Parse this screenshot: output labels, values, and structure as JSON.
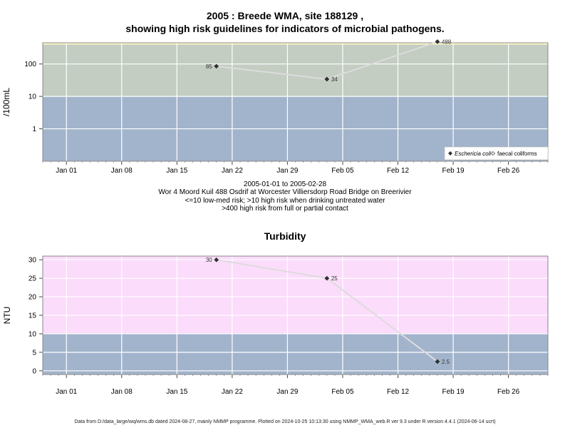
{
  "page": {
    "title_line1": "2005 : Breede WMA, site 188129 ,",
    "title_line2": "showing high risk guidelines for indicators of microbial pathogens.",
    "info_date_range": "2005-01-01 to 2005-02-28",
    "info_site": "Wor 4 Moord Kuil 488 Osdrif at Worcester Villiersdorp Road Bridge on Breerivier",
    "info_risk1": "<=10 low-med risk; >10 high risk when drinking untreated water",
    "info_risk2": ">400 high risk from full or partial contact",
    "footer": "Data from D:/data_large/wq/wms.db dated 2024-08-27, mainly NMMP programme. Plotted on 2024-10-25 10:13:30 using NMMP_WMA_web.R ver 9.3 under R version 4.4.1 (2024-06-14 ucrt)"
  },
  "chart_data": [
    {
      "type": "scatter",
      "title": "",
      "xlabel": "",
      "ylabel": "/100mL",
      "y_scale": "log",
      "x_tick_labels": [
        "Jan 01",
        "Jan 08",
        "Jan 15",
        "Jan 22",
        "Jan 29",
        "Feb 05",
        "Feb 12",
        "Feb 19",
        "Feb 26"
      ],
      "x_tick_dates": [
        "2005-01-01",
        "2005-01-08",
        "2005-01-15",
        "2005-01-22",
        "2005-01-29",
        "2005-02-05",
        "2005-02-12",
        "2005-02-19",
        "2005-02-26"
      ],
      "xlim": [
        "2004-12-29",
        "2005-03-03"
      ],
      "y_tick_labels": [
        "1",
        "10",
        "100"
      ],
      "y_tick_values": [
        1,
        10,
        100
      ],
      "ylim": [
        0.1,
        450
      ],
      "bands": [
        {
          "from": 0.1,
          "to": 10,
          "color": "#a2b4cc"
        },
        {
          "from": 10,
          "to": 400,
          "color": "#c3cdc2"
        },
        {
          "from": 400,
          "to": 450,
          "color": "#fff9c4"
        }
      ],
      "series": [
        {
          "name": "Eschericia coli",
          "marker": "filled-diamond",
          "color": "#333333",
          "x": [
            "2005-01-20",
            "2005-02-03",
            "2005-02-17"
          ],
          "y": [
            85,
            34,
            488
          ],
          "labels": [
            "85",
            "34",
            "488"
          ],
          "label_side": [
            "left",
            "right",
            "right"
          ]
        }
      ],
      "legend": {
        "position": "bottom-right",
        "entries": [
          {
            "label": "Eschericia coli",
            "marker": "filled-diamond",
            "italic": true
          },
          {
            "label": "faecal coliforms",
            "marker": "open-diamond",
            "italic": false
          }
        ]
      },
      "grid": true
    },
    {
      "type": "scatter",
      "title": "Turbidity",
      "xlabel": "",
      "ylabel": "NTU",
      "y_scale": "linear",
      "x_tick_labels": [
        "Jan 01",
        "Jan 08",
        "Jan 15",
        "Jan 22",
        "Jan 29",
        "Feb 05",
        "Feb 12",
        "Feb 19",
        "Feb 26"
      ],
      "x_tick_dates": [
        "2005-01-01",
        "2005-01-08",
        "2005-01-15",
        "2005-01-22",
        "2005-01-29",
        "2005-02-05",
        "2005-02-12",
        "2005-02-19",
        "2005-02-26"
      ],
      "xlim": [
        "2004-12-29",
        "2005-03-03"
      ],
      "y_tick_labels": [
        "0",
        "5",
        "10",
        "15",
        "20",
        "25",
        "30"
      ],
      "y_tick_values": [
        0,
        5,
        10,
        15,
        20,
        25,
        30
      ],
      "ylim": [
        -1,
        31
      ],
      "bands": [
        {
          "from": -1,
          "to": 10,
          "color": "#a2b4cc"
        },
        {
          "from": 10,
          "to": 31,
          "color": "#fbdcfb"
        }
      ],
      "series": [
        {
          "name": "",
          "marker": "filled-diamond",
          "color": "#333333",
          "x": [
            "2005-01-20",
            "2005-02-03",
            "2005-02-17"
          ],
          "y": [
            30,
            25,
            2.5
          ],
          "labels": [
            "30",
            "25",
            "2.5"
          ],
          "label_side": [
            "left",
            "right",
            "right"
          ]
        }
      ],
      "grid": true
    }
  ]
}
